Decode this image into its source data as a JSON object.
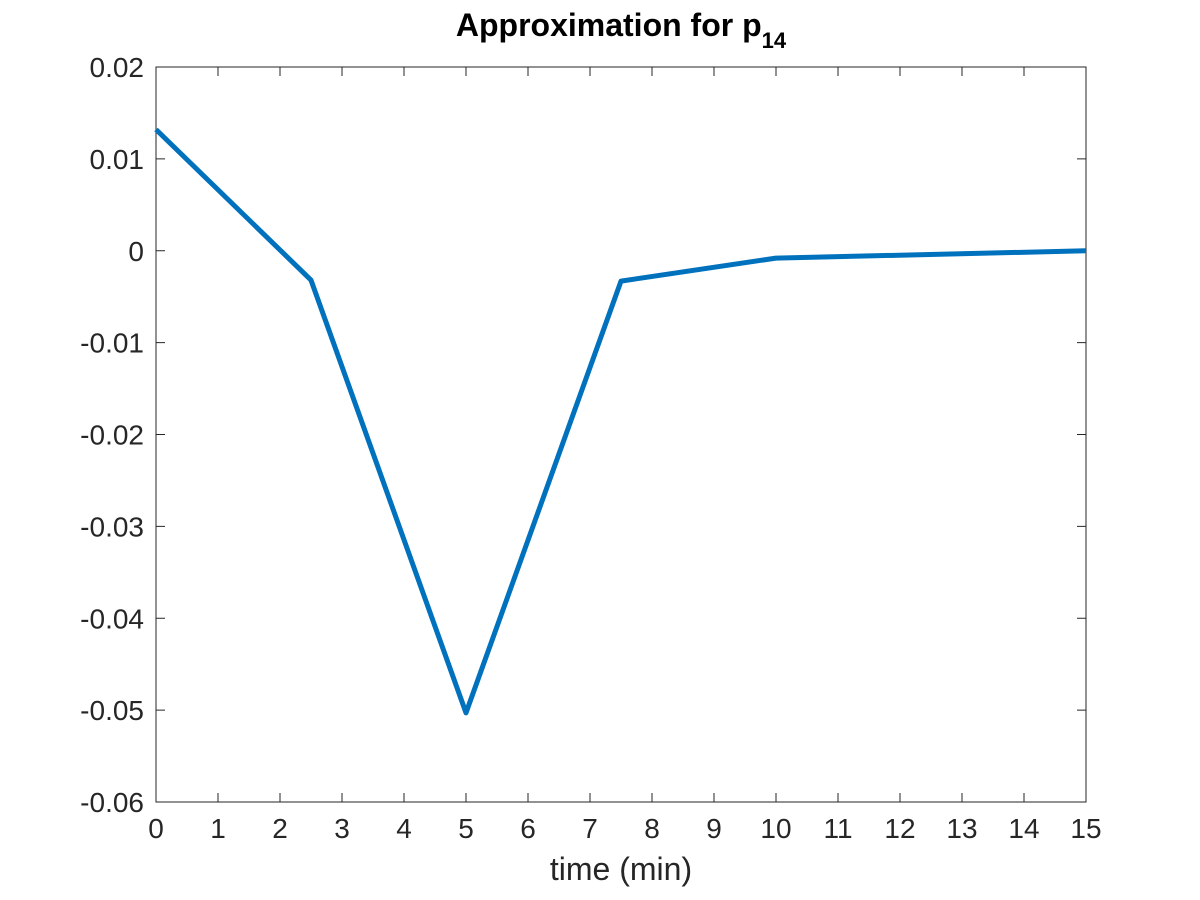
{
  "chart_data": {
    "type": "line",
    "title": "Approximation for p",
    "title_subscript": "14",
    "xlabel": "time (min)",
    "ylabel": "",
    "xlim": [
      0,
      15
    ],
    "ylim": [
      -0.06,
      0.02
    ],
    "x_ticks": [
      0,
      1,
      2,
      3,
      4,
      5,
      6,
      7,
      8,
      9,
      10,
      11,
      12,
      13,
      14,
      15
    ],
    "x_tick_labels": [
      "0",
      "1",
      "2",
      "3",
      "4",
      "5",
      "6",
      "7",
      "8",
      "9",
      "10",
      "11",
      "12",
      "13",
      "14",
      "15"
    ],
    "y_ticks": [
      0.02,
      0.01,
      0,
      -0.01,
      -0.02,
      -0.03,
      -0.04,
      -0.05,
      -0.06
    ],
    "y_tick_labels": [
      "0.02",
      "0.01",
      "0",
      "-0.01",
      "-0.02",
      "-0.03",
      "-0.04",
      "-0.05",
      "-0.06"
    ],
    "grid": false,
    "series": [
      {
        "name": "p14",
        "color": "#0072BD",
        "x": [
          0,
          2.5,
          5,
          7.5,
          10,
          15
        ],
        "y": [
          0.0132,
          -0.0032,
          -0.0503,
          -0.0033,
          -0.0008,
          0.0
        ]
      }
    ]
  }
}
